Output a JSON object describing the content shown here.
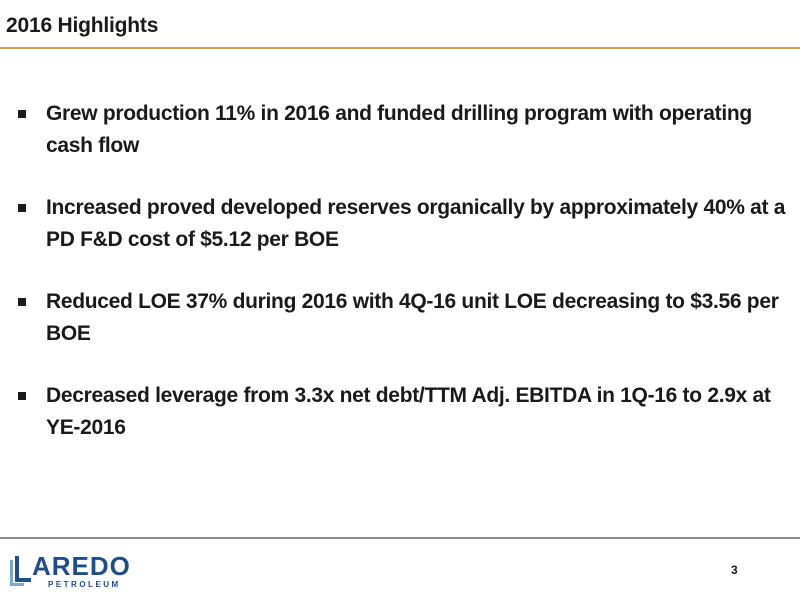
{
  "slide": {
    "title": "2016 Highlights",
    "bullets": [
      "Grew production 11% in 2016 and funded drilling program with operating cash flow",
      "Increased proved developed reserves organically by approximately 40% at a PD F&D cost of $5.12 per BOE",
      "Reduced LOE 37% during 2016 with 4Q-16 unit LOE decreasing to $3.56 per BOE",
      "Decreased leverage from 3.3x net debt/TTM Adj. EBITDA in 1Q-16 to 2.9x at YE-2016"
    ],
    "page_number": "3"
  },
  "logo": {
    "wordmark": "ARED",
    "wordmark_last": "O",
    "subtext": "PETROLEUM",
    "name": "LAREDO",
    "colors": {
      "primary": "#1f4e8c",
      "accent": "#7fa7d6"
    }
  },
  "colors": {
    "title_rule": "#c9a14e",
    "footer_rule": "#8a8a8a",
    "text": "#1a1a1a"
  }
}
